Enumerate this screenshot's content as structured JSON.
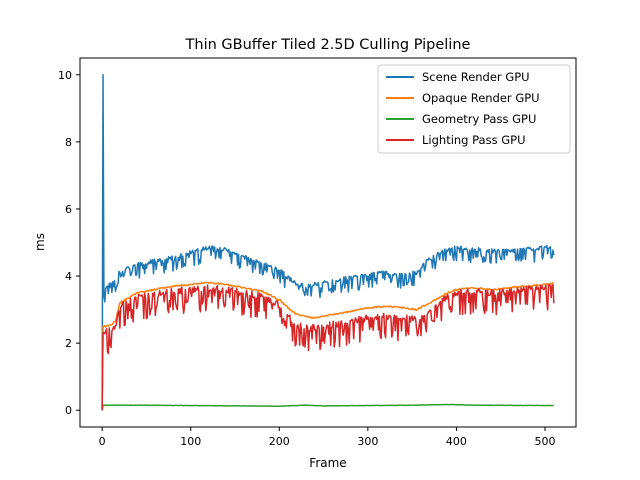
{
  "chart_data": {
    "type": "line",
    "title": "Thin GBuffer Tiled 2.5D Culling Pipeline",
    "xlabel": "Frame",
    "ylabel": "ms",
    "xlim": [
      -25,
      535
    ],
    "ylim": [
      -0.5,
      10.5
    ],
    "xticks": [
      0,
      100,
      200,
      300,
      400,
      500
    ],
    "yticks": [
      0,
      2,
      4,
      6,
      8,
      10
    ],
    "grid": false,
    "legend_position": "top-right",
    "series": [
      {
        "name": "Scene Render GPU",
        "color": "#1f77b4",
        "base": [
          [
            0,
            0
          ],
          [
            1,
            10.0
          ],
          [
            2,
            3.4
          ],
          [
            3,
            3.6
          ],
          [
            5,
            3.7
          ],
          [
            8,
            3.8
          ],
          [
            12,
            3.8
          ],
          [
            15,
            3.9
          ],
          [
            18,
            4.1
          ],
          [
            25,
            4.2
          ],
          [
            40,
            4.35
          ],
          [
            60,
            4.45
          ],
          [
            80,
            4.55
          ],
          [
            100,
            4.7
          ],
          [
            120,
            4.85
          ],
          [
            130,
            4.85
          ],
          [
            150,
            4.7
          ],
          [
            170,
            4.45
          ],
          [
            190,
            4.3
          ],
          [
            200,
            4.2
          ],
          [
            210,
            3.95
          ],
          [
            220,
            3.75
          ],
          [
            230,
            3.7
          ],
          [
            240,
            3.75
          ],
          [
            260,
            3.85
          ],
          [
            280,
            3.95
          ],
          [
            300,
            4.05
          ],
          [
            320,
            4.1
          ],
          [
            340,
            4.05
          ],
          [
            355,
            4.1
          ],
          [
            365,
            4.4
          ],
          [
            380,
            4.7
          ],
          [
            400,
            4.85
          ],
          [
            420,
            4.8
          ],
          [
            440,
            4.75
          ],
          [
            460,
            4.75
          ],
          [
            480,
            4.8
          ],
          [
            500,
            4.85
          ],
          [
            510,
            4.9
          ]
        ],
        "variation": 0.3
      },
      {
        "name": "Opaque Render GPU",
        "color": "#ff7f0e",
        "base": [
          [
            0,
            0
          ],
          [
            1,
            2.5
          ],
          [
            5,
            2.5
          ],
          [
            10,
            2.55
          ],
          [
            15,
            2.65
          ],
          [
            20,
            3.2
          ],
          [
            40,
            3.5
          ],
          [
            60,
            3.6
          ],
          [
            80,
            3.7
          ],
          [
            100,
            3.75
          ],
          [
            120,
            3.8
          ],
          [
            140,
            3.75
          ],
          [
            160,
            3.65
          ],
          [
            180,
            3.55
          ],
          [
            200,
            3.3
          ],
          [
            210,
            3.05
          ],
          [
            220,
            2.85
          ],
          [
            240,
            2.75
          ],
          [
            260,
            2.85
          ],
          [
            280,
            2.95
          ],
          [
            300,
            3.05
          ],
          [
            320,
            3.1
          ],
          [
            340,
            3.05
          ],
          [
            355,
            3.0
          ],
          [
            370,
            3.2
          ],
          [
            390,
            3.5
          ],
          [
            400,
            3.6
          ],
          [
            420,
            3.65
          ],
          [
            440,
            3.6
          ],
          [
            460,
            3.65
          ],
          [
            480,
            3.7
          ],
          [
            500,
            3.75
          ],
          [
            510,
            3.8
          ]
        ],
        "variation": 0.12
      },
      {
        "name": "Geometry Pass GPU",
        "color": "#2ca02c",
        "base": [
          [
            0,
            0
          ],
          [
            1,
            0.15
          ],
          [
            50,
            0.15
          ],
          [
            100,
            0.14
          ],
          [
            150,
            0.13
          ],
          [
            200,
            0.12
          ],
          [
            230,
            0.15
          ],
          [
            250,
            0.13
          ],
          [
            300,
            0.14
          ],
          [
            350,
            0.15
          ],
          [
            390,
            0.17
          ],
          [
            420,
            0.15
          ],
          [
            510,
            0.14
          ]
        ],
        "variation": 0.02
      },
      {
        "name": "Lighting Pass GPU",
        "color": "#d62728",
        "base": [
          [
            0,
            0
          ],
          [
            1,
            2.3
          ],
          [
            5,
            2.35
          ],
          [
            10,
            2.4
          ],
          [
            15,
            2.5
          ],
          [
            20,
            3.1
          ],
          [
            40,
            3.35
          ],
          [
            60,
            3.45
          ],
          [
            80,
            3.55
          ],
          [
            100,
            3.6
          ],
          [
            120,
            3.65
          ],
          [
            140,
            3.6
          ],
          [
            160,
            3.5
          ],
          [
            180,
            3.4
          ],
          [
            200,
            3.15
          ],
          [
            210,
            2.8
          ],
          [
            220,
            2.5
          ],
          [
            240,
            2.45
          ],
          [
            260,
            2.55
          ],
          [
            280,
            2.65
          ],
          [
            300,
            2.75
          ],
          [
            320,
            2.8
          ],
          [
            340,
            2.75
          ],
          [
            355,
            2.7
          ],
          [
            370,
            3.0
          ],
          [
            390,
            3.4
          ],
          [
            400,
            3.5
          ],
          [
            420,
            3.55
          ],
          [
            440,
            3.5
          ],
          [
            460,
            3.55
          ],
          [
            480,
            3.6
          ],
          [
            500,
            3.65
          ],
          [
            510,
            3.7
          ]
        ],
        "variation": 0.5
      }
    ]
  }
}
